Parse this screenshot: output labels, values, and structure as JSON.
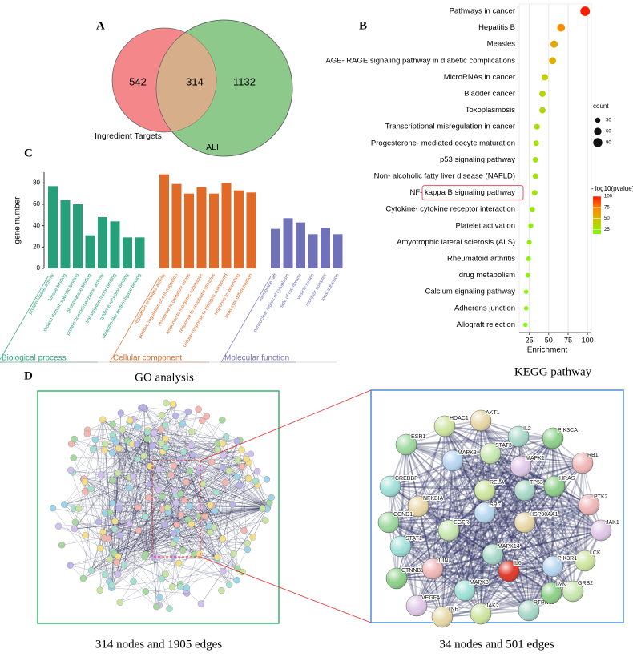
{
  "panel_labels": [
    "A",
    "B",
    "C",
    "D"
  ],
  "chart_data": [
    {
      "type": "venn",
      "sets": [
        {
          "name": "Ingredient Targets",
          "color": "#f4878a"
        },
        {
          "name": "ALI",
          "color": "#8dc98b"
        }
      ],
      "overlap_color": "#d6ae8a",
      "values": [
        542,
        314,
        1132
      ]
    },
    {
      "type": "bar",
      "title": "GO analysis",
      "y_label": "gene number",
      "ylim": [
        0,
        90
      ],
      "yticks": [
        0,
        20,
        40,
        60,
        80
      ],
      "groups": [
        {
          "name": "Biological process",
          "color": "#27a07a",
          "categories": [
            "protein kinase activity",
            "kinase binding",
            "protein domain specific binding",
            "phosphatase binding",
            "protein homodimerization activity",
            "transcription factor binding",
            "cytokine receptor binding",
            "ubiquitin-like protein ligase binding"
          ],
          "values": [
            77,
            64,
            60,
            31,
            48,
            44,
            29,
            29
          ]
        },
        {
          "name": "Cellular component",
          "color": "#e06a26",
          "categories": [
            "regulation of kinase activity",
            "positive regulation of cell migration",
            "response to oxidative stress",
            "response to inorganic substance",
            "response to xenobiotic stimulus",
            "cellular response to nitrogen compound",
            "response to wounding",
            "leukocyte differentiation"
          ],
          "values": [
            88,
            79,
            70,
            76,
            70,
            80,
            73,
            71
          ]
        },
        {
          "name": "Molecular function",
          "color": "#7171b8",
          "categories": [
            "membrane raft",
            "perinuclear region of cytoplasm",
            "side of membrane",
            "vesicle lumen",
            "receptor complex",
            "focal adhesion"
          ],
          "values": [
            37,
            47,
            43,
            32,
            38,
            32
          ]
        }
      ]
    },
    {
      "type": "dot",
      "title": "KEGG pathway",
      "x_label": "Enrichment",
      "categories": [
        "Pathways in cancer",
        "Hepatitis B",
        "Measles",
        "AGE- RAGE signaling pathway in diabetic complications",
        "MicroRNAs in cancer",
        "Bladder cancer",
        "Toxoplasmosis",
        "Transcriptional misregulation in cancer",
        "Progesterone- mediated oocyte maturation",
        "p53 signaling pathway",
        "Non- alcoholic fatty liver disease (NAFLD)",
        "NF- kappa B signaling pathway",
        "Cytokine- cytokine receptor interaction",
        "Platelet activation",
        "Amyotrophic lateral sclerosis (ALS)",
        "Rheumatoid arthritis",
        "drug metabolism",
        "Calcium signaling pathway",
        "Adherens junction",
        "Allograft rejection"
      ],
      "x": [
        97,
        66,
        57,
        55,
        45,
        42,
        42,
        35,
        34,
        33,
        33,
        32,
        29,
        27,
        25,
        24,
        23,
        21,
        21,
        20
      ],
      "size": [
        97,
        66,
        57,
        55,
        45,
        42,
        42,
        35,
        34,
        33,
        33,
        32,
        29,
        27,
        25,
        24,
        23,
        21,
        21,
        20
      ],
      "color_values": [
        100,
        72,
        58,
        55,
        40,
        35,
        35,
        30,
        28,
        27,
        27,
        26,
        24,
        22,
        21,
        20,
        19,
        18,
        17,
        16
      ],
      "xlim": [
        12,
        105
      ],
      "xticks": [
        25,
        50,
        75,
        100
      ],
      "grid": true,
      "size_label": "count",
      "size_ticks": [
        30,
        60,
        90
      ],
      "color_label": "- log10(pvalue)",
      "color_ticks": [
        25,
        50,
        75,
        100
      ],
      "color_lim": [
        15,
        100
      ],
      "color_scale": [
        "#7cfc00",
        "#c8c800",
        "#ff8c00",
        "#ff1a00"
      ],
      "highlight": 11
    }
  ],
  "network": {
    "full": {
      "caption": "314 nodes and 1905 edges"
    },
    "core": {
      "caption": "34 nodes and 501 edges",
      "nodes": [
        "AKT1",
        "HDAC1",
        "IL2",
        "PIK3CA",
        "RB1",
        "ESR1",
        "MAPK3",
        "STAT3",
        "MAPK1",
        "CREBBP",
        "NFKBIA",
        "RELA",
        "TP53",
        "HRAS",
        "PTK2",
        "CCND1",
        "SRC",
        "EGFR",
        "JAK1",
        "STAT1",
        "HSP90AA1",
        "LCK",
        "MAPK14",
        "CTNNB1",
        "JUN",
        "IL6",
        "PIK3R1",
        "GRB2",
        "VEGFA",
        "MAPK8",
        "TNF",
        "JAK2",
        "PTPN11",
        "LYN"
      ]
    }
  }
}
